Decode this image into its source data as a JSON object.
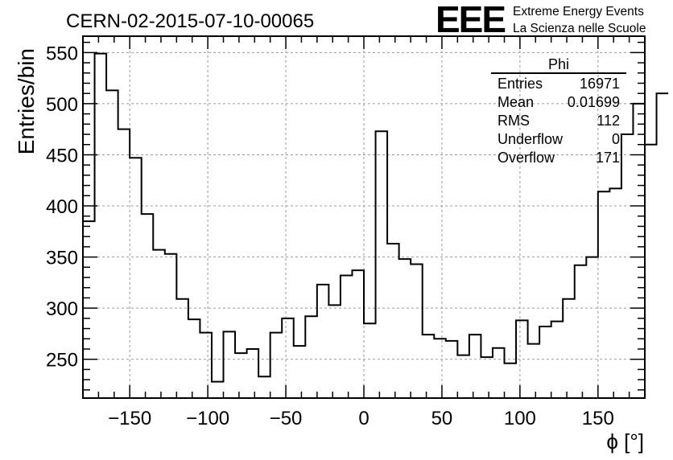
{
  "header": {
    "run_title": "CERN-02-2015-07-10-00065",
    "logo_text": "EEE",
    "logo_line1": "Extreme Energy Events",
    "logo_line2": "La Scienza nelle Scuole",
    "logo_color": "#1a1aff"
  },
  "stats_box": {
    "title": "Phi",
    "rows": [
      {
        "label": "Entries",
        "value": "16971"
      },
      {
        "label": "Mean",
        "value": "0.01699"
      },
      {
        "label": "RMS",
        "value": "112"
      },
      {
        "label": "Underflow",
        "value": "0"
      },
      {
        "label": "Overflow",
        "value": "171"
      }
    ]
  },
  "chart_data": {
    "type": "histogram",
    "ylabel": "Entries/bin",
    "xlabel": "ϕ [°]",
    "xlim": [
      -180,
      180
    ],
    "ylim": [
      212,
      566
    ],
    "bin_width": 7.5,
    "bin_edges_start": -180,
    "values": [
      385,
      549,
      513,
      475,
      447,
      392,
      357,
      353,
      309,
      289,
      276,
      228,
      277,
      256,
      260,
      233,
      276,
      290,
      263,
      292,
      323,
      303,
      332,
      337,
      285,
      473,
      363,
      348,
      343,
      274,
      270,
      268,
      254,
      274,
      252,
      261,
      246,
      288,
      265,
      282,
      287,
      309,
      342,
      350,
      414,
      417,
      470,
      500,
      460,
      510
    ],
    "xticks": [
      -150,
      -100,
      -50,
      0,
      50,
      100,
      150
    ],
    "xtick_labels": [
      "−150",
      "−100",
      "−50",
      "0",
      "50",
      "100",
      "150"
    ],
    "yticks": [
      250,
      300,
      350,
      400,
      450,
      500,
      550
    ],
    "ytick_labels": [
      "250",
      "300",
      "350",
      "400",
      "450",
      "500",
      "550"
    ],
    "grid": true,
    "line_color": "#000000"
  }
}
